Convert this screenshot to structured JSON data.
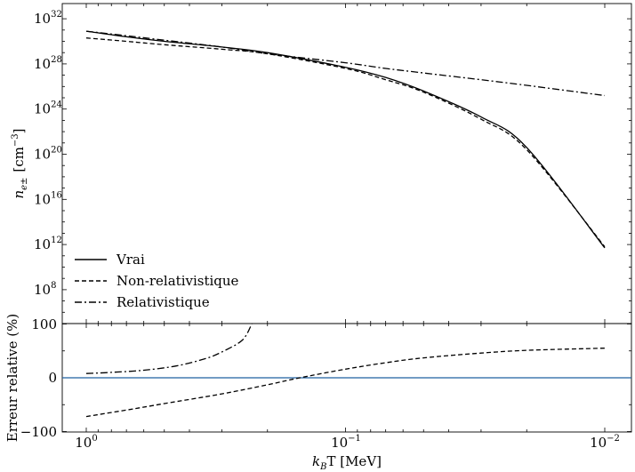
{
  "chart_data": [
    {
      "type": "line",
      "scale": {
        "x": "log-reversed",
        "y": "log"
      },
      "xlim": [
        1.0,
        0.01
      ],
      "ylim": [
        100000.0,
        1e+32
      ],
      "y_tick_exponents": [
        8,
        12,
        16,
        20,
        24,
        28,
        32
      ],
      "ylabel": {
        "symbol": "n",
        "subscript": "e±",
        "unit_prefix": "[cm",
        "unit_exp": "−3",
        "unit_suffix": "]"
      },
      "legend": {
        "placement": "lower-left",
        "entries": [
          {
            "label": "Vrai",
            "style": "solid"
          },
          {
            "label": "Non-relativistique",
            "style": "dashed"
          },
          {
            "label": "Relativistique",
            "style": "dashdot"
          }
        ]
      },
      "x": [
        1.0,
        0.7,
        0.5,
        0.3,
        0.2,
        0.1,
        0.07,
        0.05,
        0.03,
        0.02,
        0.01
      ],
      "series": [
        {
          "name": "Vrai",
          "style": "solid",
          "log10_values": [
            30.9,
            30.4,
            30.0,
            29.5,
            29.0,
            27.7,
            26.8,
            25.6,
            23.3,
            20.6,
            11.7
          ]
        },
        {
          "name": "Non-relativistique",
          "style": "dashed",
          "log10_values": [
            30.3,
            30.0,
            29.7,
            29.3,
            28.9,
            27.6,
            26.6,
            25.5,
            23.1,
            20.4,
            11.8
          ]
        },
        {
          "name": "Relativistique",
          "style": "dashdot",
          "log10_values": [
            30.9,
            30.5,
            30.1,
            29.5,
            28.9,
            28.1,
            27.6,
            27.2,
            26.6,
            26.1,
            25.2
          ]
        }
      ]
    },
    {
      "type": "line",
      "scale": {
        "x": "log-reversed",
        "y": "linear"
      },
      "xlim": [
        1.0,
        0.01
      ],
      "ylim": [
        -100,
        100
      ],
      "y_ticks": [
        "100",
        "0",
        "−100"
      ],
      "x_ticks": [
        {
          "base": "10",
          "exp": "0"
        },
        {
          "base": "10",
          "exp": "−1"
        },
        {
          "base": "10",
          "exp": "−2"
        }
      ],
      "xlabel": {
        "prefix": "k",
        "subscript": "B",
        "suffix": "T [MeV]"
      },
      "ylabel": "Erreur relative (%)",
      "reference_line": {
        "y": 0,
        "color": "#1f5fa0"
      },
      "series": [
        {
          "name": "Non-relativistique",
          "style": "dashed",
          "x": [
            1.0,
            0.7,
            0.5,
            0.3,
            0.2,
            0.15,
            0.1,
            0.07,
            0.05,
            0.03,
            0.02,
            0.01
          ],
          "y": [
            -72,
            -60,
            -48,
            -30,
            -13,
            0,
            16,
            28,
            37,
            46,
            51,
            55
          ]
        },
        {
          "name": "Relativistique",
          "style": "dashdot",
          "x": [
            1.0,
            0.8,
            0.6,
            0.45,
            0.35,
            0.3,
            0.25,
            0.23
          ],
          "y": [
            8,
            10,
            14,
            22,
            35,
            48,
            70,
            100
          ]
        }
      ]
    }
  ]
}
